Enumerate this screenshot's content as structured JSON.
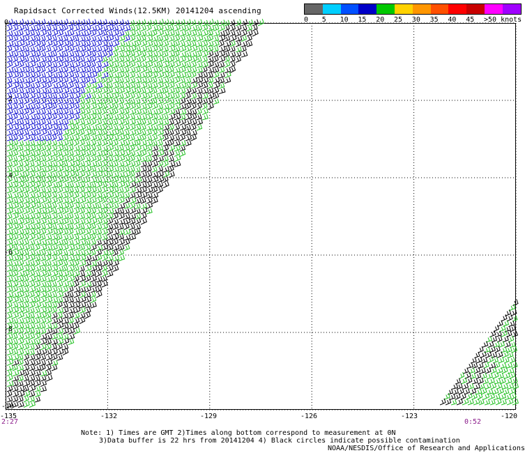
{
  "title": "Rapidsact Corrected Winds(12.5KM) 20141204 ascending",
  "legend": {
    "colors": [
      "#666666",
      "#00cfff",
      "#0050ff",
      "#0000c8",
      "#00c800",
      "#ffd200",
      "#ff9600",
      "#ff5000",
      "#ff0000",
      "#c80000",
      "#ff00ff",
      "#a000ff"
    ],
    "labels": [
      "0",
      "5",
      "10",
      "15",
      "20",
      "25",
      "30",
      "35",
      "40",
      "45",
      ">50 knots"
    ]
  },
  "map": {
    "lon_range": [
      -135,
      -120
    ],
    "lat_range": [
      -10,
      0
    ],
    "lat_ticks": [
      "0",
      "-2",
      "-4",
      "-6",
      "-8",
      "-10"
    ],
    "lon_ticks": [
      "-135",
      "-132",
      "-129",
      "-126",
      "-123",
      "-120"
    ]
  },
  "times": {
    "left": "2:27",
    "right": "0:52"
  },
  "notes": [
    "Note: 1) Times are GMT 2)Times along bottom correspond to measurement at 0N",
    "3)Data buffer is 22 hrs from 20141204 4) Black circles indicate possible contamination",
    "NOAA/NESDIS/Office of Research and Applications"
  ]
}
